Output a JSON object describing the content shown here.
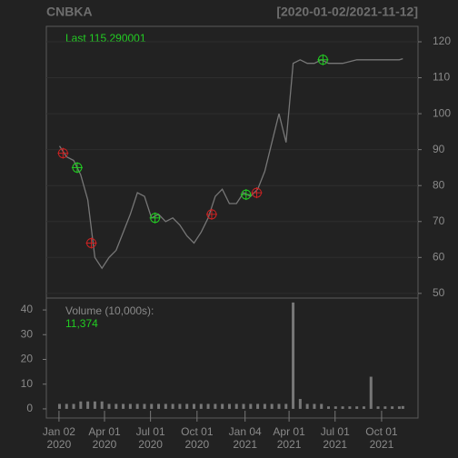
{
  "chart_data": {
    "type": "stock",
    "title": "CNBKA",
    "subtitle": "[2020-01-02/2021-11-12]",
    "last_label": "Last 115.290001",
    "volume_label": "Volume (10,000s):",
    "last_volume": "11,374",
    "xlim": [
      "2019-12-08",
      "2021-12-12"
    ],
    "xticks": [
      {
        "value": "2020-01-02",
        "label": [
          "Jan 02",
          "2020"
        ]
      },
      {
        "value": "2020-04-01",
        "label": [
          "Apr 01",
          "2020"
        ]
      },
      {
        "value": "2020-07-01",
        "label": [
          "Jul 01",
          "2020"
        ]
      },
      {
        "value": "2020-10-01",
        "label": [
          "Oct 01",
          "2020"
        ]
      },
      {
        "value": "2021-01-04",
        "label": [
          "Jan 04",
          "2021"
        ]
      },
      {
        "value": "2021-04-01",
        "label": [
          "Apr 01",
          "2021"
        ]
      },
      {
        "value": "2021-07-01",
        "label": [
          "Jul 01",
          "2021"
        ]
      },
      {
        "value": "2021-10-01",
        "label": [
          "Oct 01",
          "2021"
        ]
      }
    ],
    "x": [
      "2020-01-03",
      "2020-01-17",
      "2020-01-31",
      "2020-02-14",
      "2020-02-28",
      "2020-03-13",
      "2020-03-27",
      "2020-04-10",
      "2020-04-24",
      "2020-05-08",
      "2020-05-22",
      "2020-06-05",
      "2020-06-19",
      "2020-07-03",
      "2020-07-17",
      "2020-07-31",
      "2020-08-14",
      "2020-08-28",
      "2020-09-11",
      "2020-09-25",
      "2020-10-09",
      "2020-10-23",
      "2020-11-06",
      "2020-11-20",
      "2020-12-04",
      "2020-12-18",
      "2021-01-01",
      "2021-01-15",
      "2021-01-29",
      "2021-02-12",
      "2021-02-26",
      "2021-03-12",
      "2021-03-26",
      "2021-04-09",
      "2021-04-23",
      "2021-05-07",
      "2021-05-21",
      "2021-06-04",
      "2021-06-18",
      "2021-07-02",
      "2021-07-16",
      "2021-07-30",
      "2021-08-13",
      "2021-08-27",
      "2021-09-10",
      "2021-09-24",
      "2021-10-08",
      "2021-10-22",
      "2021-11-05",
      "2021-11-12"
    ],
    "price": {
      "name": "price",
      "color": "#777777",
      "values": [
        91,
        88,
        87,
        83,
        76,
        60,
        57,
        60,
        62,
        67,
        72,
        78,
        77,
        71,
        72,
        70,
        71,
        69,
        66,
        64,
        67,
        71,
        77,
        79,
        75,
        75,
        78,
        77,
        79,
        84,
        92,
        100,
        92,
        114,
        115,
        114,
        114,
        115,
        114,
        114,
        114,
        114.5,
        115,
        115,
        115,
        115,
        115,
        115,
        115,
        115.29
      ],
      "ylim": [
        48.7,
        124.3
      ],
      "yticks": [
        50,
        60,
        70,
        80,
        90,
        100,
        110,
        120
      ]
    },
    "volume": {
      "name": "volume",
      "color": "#777777",
      "values": [
        2,
        2,
        2,
        3,
        3,
        3,
        3,
        2,
        2,
        2,
        2,
        2,
        2,
        2,
        2,
        2,
        2,
        2,
        2,
        2,
        2,
        2,
        2,
        2,
        2,
        2,
        2,
        2,
        2,
        2,
        2,
        2,
        2,
        43,
        4,
        2,
        2,
        2,
        1,
        1,
        1,
        1,
        1,
        1,
        13,
        1,
        1,
        1,
        1,
        1.1374
      ],
      "ylim": [
        -3.7,
        44.8
      ],
      "yticks": [
        0,
        10,
        20,
        30,
        40
      ]
    },
    "signals": [
      {
        "x": "2020-01-10",
        "value": 89,
        "color": "#cc2222"
      },
      {
        "x": "2020-02-07",
        "value": 85,
        "color": "#22cc22"
      },
      {
        "x": "2020-03-06",
        "value": 64,
        "color": "#cc2222"
      },
      {
        "x": "2020-07-10",
        "value": 71,
        "color": "#22cc22"
      },
      {
        "x": "2020-10-30",
        "value": 72,
        "color": "#cc2222"
      },
      {
        "x": "2021-01-06",
        "value": 77.5,
        "color": "#22cc22"
      },
      {
        "x": "2021-01-27",
        "value": 78,
        "color": "#cc2222"
      },
      {
        "x": "2021-06-07",
        "value": 115,
        "color": "#22cc22"
      }
    ]
  }
}
